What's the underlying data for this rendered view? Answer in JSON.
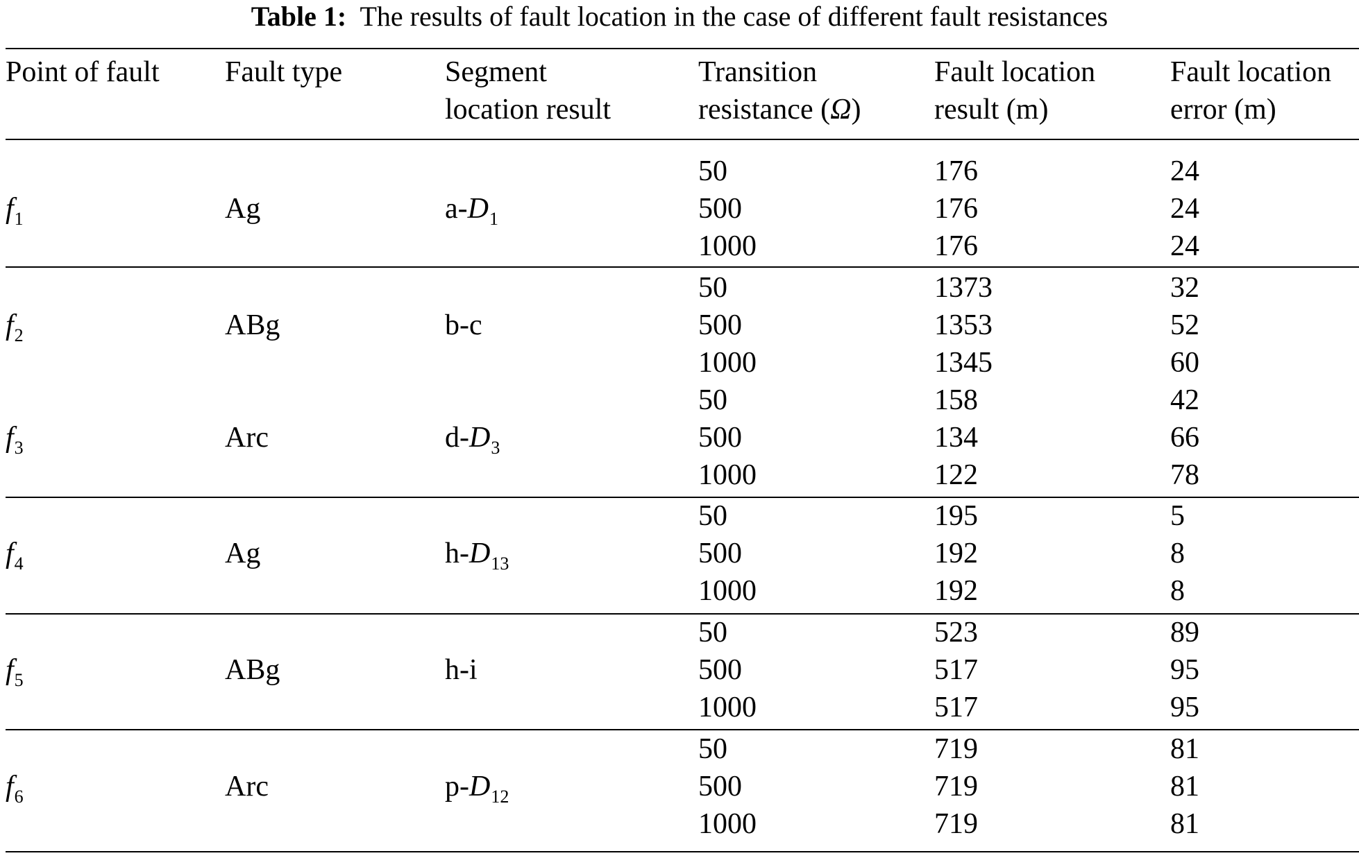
{
  "caption": {
    "label": "Table 1:",
    "text": "The results of fault location in the case of different fault resistances"
  },
  "headers": {
    "point": [
      "Point of fault"
    ],
    "type": [
      "Fault type"
    ],
    "segment": [
      "Segment",
      "location result"
    ],
    "resistance": [
      "Transition",
      "resistance (",
      "Ω",
      ")"
    ],
    "result": [
      "Fault location",
      "result (m)"
    ],
    "error": [
      "Fault location",
      "error (m)"
    ]
  },
  "groups": [
    {
      "point": {
        "base": "f",
        "sub": "1"
      },
      "type": "Ag",
      "segment": {
        "prefix": "a-",
        "base": "D",
        "sub": "1"
      },
      "rows": [
        {
          "resistance": "50",
          "result": "176",
          "error": "24"
        },
        {
          "resistance": "500",
          "result": "176",
          "error": "24"
        },
        {
          "resistance": "1000",
          "result": "176",
          "error": "24"
        }
      ]
    },
    {
      "point": {
        "base": "f",
        "sub": "2"
      },
      "type": "ABg",
      "segment": {
        "prefix": "b-c",
        "base": "",
        "sub": ""
      },
      "rows": [
        {
          "resistance": "50",
          "result": "1373",
          "error": "32"
        },
        {
          "resistance": "500",
          "result": "1353",
          "error": "52"
        },
        {
          "resistance": "1000",
          "result": "1345",
          "error": "60"
        }
      ]
    },
    {
      "point": {
        "base": "f",
        "sub": "3"
      },
      "type": "Arc",
      "segment": {
        "prefix": "d-",
        "base": "D",
        "sub": "3"
      },
      "rows": [
        {
          "resistance": "50",
          "result": "158",
          "error": "42"
        },
        {
          "resistance": "500",
          "result": "134",
          "error": "66"
        },
        {
          "resistance": "1000",
          "result": "122",
          "error": "78"
        }
      ]
    },
    {
      "point": {
        "base": "f",
        "sub": "4"
      },
      "type": "Ag",
      "segment": {
        "prefix": "h-",
        "base": "D",
        "sub": "13"
      },
      "rows": [
        {
          "resistance": "50",
          "result": "195",
          "error": "5"
        },
        {
          "resistance": "500",
          "result": "192",
          "error": "8"
        },
        {
          "resistance": "1000",
          "result": "192",
          "error": "8"
        }
      ]
    },
    {
      "point": {
        "base": "f",
        "sub": "5"
      },
      "type": "ABg",
      "segment": {
        "prefix": "h-i",
        "base": "",
        "sub": ""
      },
      "rows": [
        {
          "resistance": "50",
          "result": "523",
          "error": "89"
        },
        {
          "resistance": "500",
          "result": "517",
          "error": "95"
        },
        {
          "resistance": "1000",
          "result": "517",
          "error": "95"
        }
      ]
    },
    {
      "point": {
        "base": "f",
        "sub": "6"
      },
      "type": "Arc",
      "segment": {
        "prefix": "p-",
        "base": "D",
        "sub": "12"
      },
      "rows": [
        {
          "resistance": "50",
          "result": "719",
          "error": "81"
        },
        {
          "resistance": "500",
          "result": "719",
          "error": "81"
        },
        {
          "resistance": "1000",
          "result": "719",
          "error": "81"
        }
      ]
    }
  ]
}
